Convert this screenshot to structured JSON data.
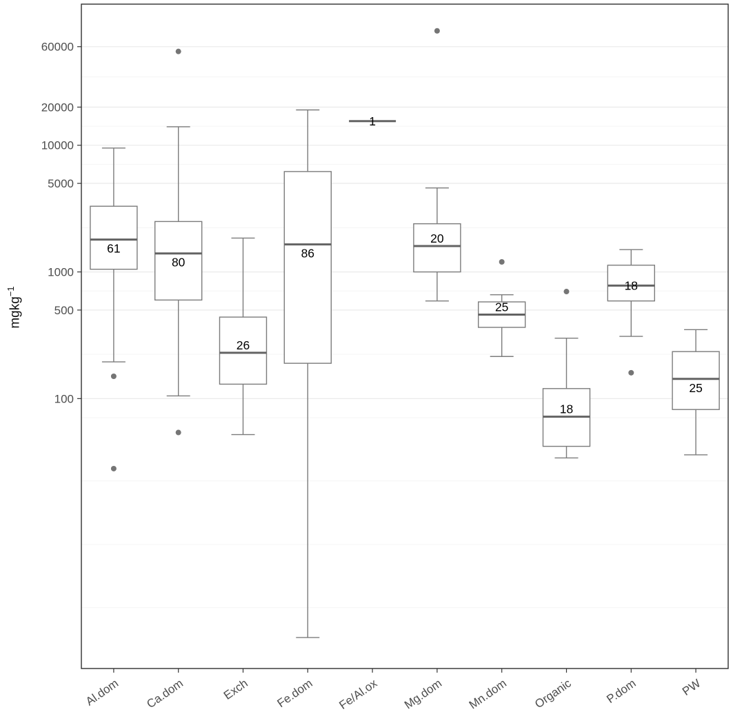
{
  "chart_data": {
    "type": "boxplot",
    "title": "",
    "ylabel": "mgkg⁻¹",
    "ylabel_base": "mgkg",
    "ylabel_exp": "−1",
    "xlabel": "",
    "y_scale": "log10",
    "ylim": [
      0.74,
      130000
    ],
    "grid": true,
    "legend": "none",
    "y_ticks": [
      100,
      500,
      1000,
      5000,
      10000,
      20000,
      60000
    ],
    "y_minor_gridlines": [
      2.24,
      7.07,
      22.4,
      70.7,
      224,
      707,
      2236,
      7071,
      14142,
      34641
    ],
    "categories": [
      "Al.dom",
      "Ca.dom",
      "Exch",
      "Fe.dom",
      "Fe/Al.ox",
      "Mg.dom",
      "Mn.dom",
      "Organic",
      "P.dom",
      "PW"
    ],
    "boxes": [
      {
        "category": "Al.dom",
        "n": 61,
        "whisker_low": 195,
        "q1": 1050,
        "median": 1800,
        "q3": 3300,
        "whisker_high": 9500,
        "outliers": [
          150,
          28
        ],
        "label_pos": "below"
      },
      {
        "category": "Ca.dom",
        "n": 80,
        "whisker_low": 105,
        "q1": 600,
        "median": 1400,
        "q3": 2500,
        "whisker_high": 14000,
        "outliers": [
          55000,
          54
        ],
        "label_pos": "below"
      },
      {
        "category": "Exch",
        "n": 26,
        "whisker_low": 52,
        "q1": 130,
        "median": 230,
        "q3": 440,
        "whisker_high": 1850,
        "outliers": [],
        "label_pos": "above"
      },
      {
        "category": "Fe.dom",
        "n": 86,
        "whisker_low": 1.3,
        "q1": 190,
        "median": 1650,
        "q3": 6200,
        "whisker_high": 19000,
        "outliers": [],
        "label_pos": "below"
      },
      {
        "category": "Fe/Al.ox",
        "n": 1,
        "whisker_low": 15500,
        "q1": 15500,
        "median": 15500,
        "q3": 15500,
        "whisker_high": 15500,
        "outliers": [],
        "label_pos": "center"
      },
      {
        "category": "Mg.dom",
        "n": 20,
        "whisker_low": 590,
        "q1": 1000,
        "median": 1600,
        "q3": 2400,
        "whisker_high": 4600,
        "outliers": [
          80000
        ],
        "label_pos": "above"
      },
      {
        "category": "Mn.dom",
        "n": 25,
        "whisker_low": 215,
        "q1": 365,
        "median": 460,
        "q3": 580,
        "whisker_high": 660,
        "outliers": [
          1200
        ],
        "label_pos": "above"
      },
      {
        "category": "Organic",
        "n": 18,
        "whisker_low": 34,
        "q1": 42,
        "median": 72,
        "q3": 120,
        "whisker_high": 300,
        "outliers": [
          700
        ],
        "label_pos": "above"
      },
      {
        "category": "P.dom",
        "n": 18,
        "whisker_low": 310,
        "q1": 590,
        "median": 780,
        "q3": 1130,
        "whisker_high": 1500,
        "outliers": [
          160
        ],
        "label_pos": "center"
      },
      {
        "category": "PW",
        "n": 25,
        "whisker_low": 36,
        "q1": 82,
        "median": 143,
        "q3": 235,
        "whisker_high": 350,
        "outliers": [],
        "label_pos": "below"
      }
    ]
  },
  "colors": {
    "background": "#ffffff",
    "panel_border": "#2f2f2f",
    "grid_major": "#ebebeb",
    "grid_minor": "#f5f5f5",
    "box_stroke": "#7b7b7b",
    "box_fill": "#ffffff",
    "median": "#636363",
    "outlier": "#757575",
    "tick_mark": "#333333",
    "tick_text": "#4d4d4d",
    "label_text": "#000000"
  }
}
